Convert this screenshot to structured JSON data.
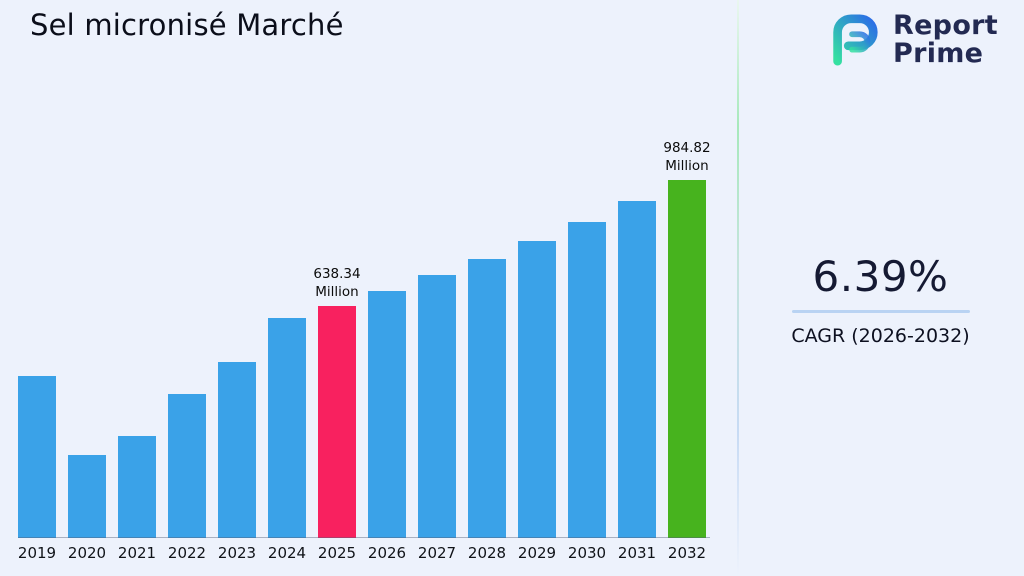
{
  "page": {
    "title": "Sel micronisé Marché"
  },
  "logo": {
    "line1": "Report",
    "line2": "Prime"
  },
  "stats": {
    "value": "6.39%",
    "label": "CAGR (2026-2032)"
  },
  "chart_data": {
    "type": "bar",
    "title": "Sel micronisé Marché",
    "unit": "Million",
    "categories": [
      "2019",
      "2020",
      "2021",
      "2022",
      "2023",
      "2024",
      "2025",
      "2026",
      "2027",
      "2028",
      "2029",
      "2030",
      "2031",
      "2032"
    ],
    "values": [
      445,
      228,
      281,
      397,
      485,
      604,
      638.34,
      679.1,
      722.5,
      768.7,
      817.8,
      870.1,
      925.7,
      984.82
    ],
    "ylim": [
      0,
      1050
    ],
    "grid": false,
    "legend": "none",
    "annotations": [
      {
        "category": "2025",
        "value": "638.34",
        "unit": "Million"
      },
      {
        "category": "2032",
        "value": "984.82",
        "unit": "Million"
      }
    ],
    "bar_colors": {
      "default": "#3aa2e8",
      "2025": "#f8215f",
      "2032": "#47b31e"
    },
    "accent_colors": {
      "underline": "#b9d3f3",
      "logo_navy": "#232a52",
      "logo_gradient_start": "#35e0a1",
      "logo_gradient_end": "#2b6be8"
    }
  }
}
